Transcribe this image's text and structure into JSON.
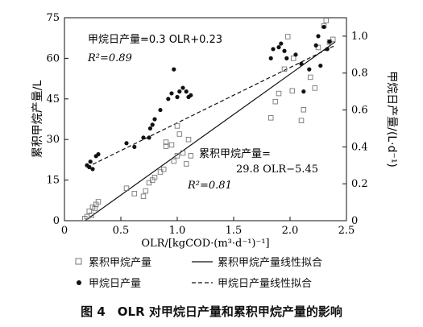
{
  "chart_data": {
    "type": "scatter",
    "xlabel": "OLR/[kgCOD·(m³·d⁻¹)⁻¹]",
    "ylabel_left": "累积甲烷产量/L",
    "ylabel_right": "甲烷日产量/(L·d⁻¹)",
    "xlim": [
      0,
      2.5
    ],
    "ylim_left": [
      0,
      75
    ],
    "ylim_right": [
      0,
      1.1
    ],
    "x_ticks": [
      "0",
      "0.5",
      "1.0",
      "1.5",
      "2.0",
      "2.5"
    ],
    "y_left_ticks": [
      "0",
      "15",
      "30",
      "45",
      "60",
      "75"
    ],
    "y_right_ticks": [
      "0",
      "0.2",
      "0.4",
      "0.6",
      "0.8",
      "1.0"
    ],
    "series": [
      {
        "name": "累积甲烷产量",
        "axis": "left",
        "marker": "open-square",
        "points": [
          [
            0.18,
            0.8
          ],
          [
            0.2,
            1.5
          ],
          [
            0.22,
            3.5
          ],
          [
            0.24,
            2
          ],
          [
            0.25,
            5
          ],
          [
            0.27,
            4.5
          ],
          [
            0.28,
            6
          ],
          [
            0.3,
            7
          ],
          [
            0.55,
            12
          ],
          [
            0.62,
            10
          ],
          [
            0.7,
            9
          ],
          [
            0.72,
            11
          ],
          [
            0.75,
            14
          ],
          [
            0.78,
            15
          ],
          [
            0.8,
            16
          ],
          [
            0.85,
            18
          ],
          [
            0.88,
            19
          ],
          [
            0.9,
            27.5
          ],
          [
            0.9,
            29
          ],
          [
            0.95,
            28
          ],
          [
            0.97,
            22
          ],
          [
            1.0,
            24
          ],
          [
            1.0,
            35
          ],
          [
            1.02,
            32
          ],
          [
            1.05,
            25
          ],
          [
            1.08,
            21
          ],
          [
            1.1,
            30
          ],
          [
            1.12,
            24
          ],
          [
            1.83,
            38
          ],
          [
            1.87,
            44
          ],
          [
            1.9,
            47
          ],
          [
            1.95,
            56
          ],
          [
            1.98,
            68
          ],
          [
            2.02,
            48
          ],
          [
            2.03,
            60
          ],
          [
            2.1,
            37
          ],
          [
            2.12,
            41
          ],
          [
            2.18,
            53
          ],
          [
            2.22,
            49
          ],
          [
            2.25,
            64
          ],
          [
            2.27,
            77
          ],
          [
            2.3,
            72
          ],
          [
            2.32,
            74
          ],
          [
            2.35,
            66
          ],
          [
            2.38,
            67
          ]
        ]
      },
      {
        "name": "甲烷日产量",
        "axis": "right",
        "marker": "filled-circle",
        "points": [
          [
            0.2,
            0.3
          ],
          [
            0.22,
            0.29
          ],
          [
            0.23,
            0.32
          ],
          [
            0.25,
            0.28
          ],
          [
            0.28,
            0.35
          ],
          [
            0.3,
            0.36
          ],
          [
            0.55,
            0.42
          ],
          [
            0.62,
            0.4
          ],
          [
            0.7,
            0.45
          ],
          [
            0.75,
            0.45
          ],
          [
            0.76,
            0.5
          ],
          [
            0.78,
            0.52
          ],
          [
            0.8,
            0.55
          ],
          [
            0.85,
            0.6
          ],
          [
            0.92,
            0.66
          ],
          [
            0.95,
            0.69
          ],
          [
            0.97,
            0.82
          ],
          [
            1.0,
            0.67
          ],
          [
            1.02,
            0.7
          ],
          [
            1.05,
            0.72
          ],
          [
            1.08,
            0.7
          ],
          [
            1.1,
            0.67
          ],
          [
            1.12,
            0.68
          ],
          [
            1.83,
            0.88
          ],
          [
            1.85,
            0.93
          ],
          [
            1.9,
            0.94
          ],
          [
            1.92,
            0.96
          ],
          [
            1.95,
            0.92
          ],
          [
            1.97,
            0.88
          ],
          [
            2.05,
            0.9
          ],
          [
            2.1,
            0.85
          ],
          [
            2.12,
            0.7
          ],
          [
            2.17,
            0.82
          ],
          [
            2.23,
            0.95
          ],
          [
            2.25,
            1.0
          ],
          [
            2.27,
            0.84
          ],
          [
            2.3,
            1.05
          ],
          [
            2.33,
            0.93
          ],
          [
            2.35,
            0.97
          ]
        ]
      }
    ],
    "fits": [
      {
        "name": "累积甲烷产量线性拟合",
        "axis": "left",
        "style": "solid",
        "slope": 29.8,
        "intercept": -5.45,
        "x_range": [
          0.18,
          2.4
        ],
        "label_lines": [
          "累积甲烷产量=",
          "29.8 OLR−5.45"
        ],
        "r2_label": "R²=0.81"
      },
      {
        "name": "甲烷日产量线性拟合",
        "axis": "right",
        "style": "dashed",
        "slope": 0.3,
        "intercept": 0.23,
        "x_range": [
          0.2,
          2.4
        ],
        "label_lines": [
          "甲烷日产量=0.3 OLR+0.23"
        ],
        "r2_label": "R²=0.89"
      }
    ]
  },
  "legend": {
    "item1": "累积甲烷产量",
    "item2": "累积甲烷产量线性拟合",
    "item3": "甲烷日产量",
    "item4": "甲烷日产量线性拟合"
  },
  "caption": "图 4　OLR 对甲烷日产量和累积甲烷产量的影响"
}
